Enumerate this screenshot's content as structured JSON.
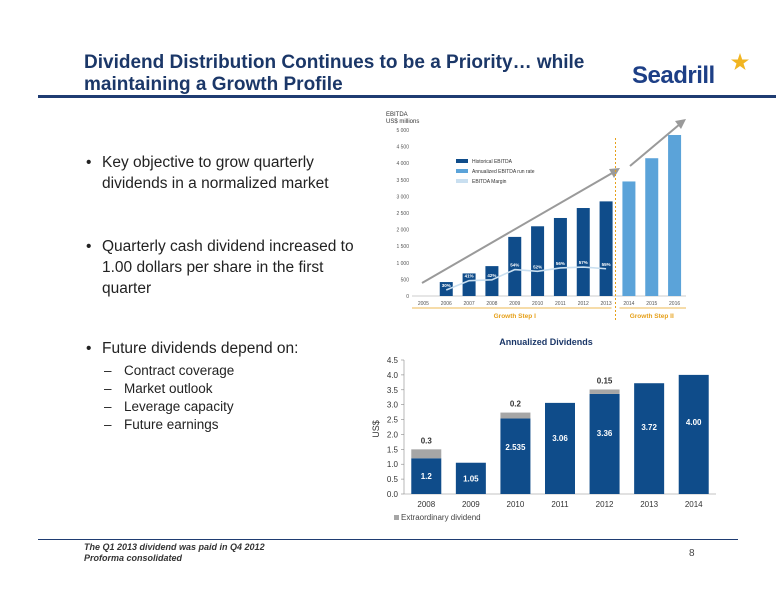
{
  "slide": {
    "title": "Dividend Distribution Continues to be a Priority… while maintaining a Growth Profile",
    "logo_text": "Seadrill",
    "page_number": "8",
    "footnotes": [
      "The Q1 2013 dividend was paid in Q4 2012",
      "Proforma consolidated"
    ]
  },
  "bullets": [
    {
      "text": "Key objective to grow quarterly dividends in a normalized market"
    },
    {
      "text": "Quarterly cash dividend increased to 1.00 dollars per share in the first quarter"
    },
    {
      "text": "Future dividends depend on:"
    }
  ],
  "sub_bullets": [
    "Contract coverage",
    "Market outlook",
    "Leverage capacity",
    "Future earnings"
  ],
  "colors": {
    "navy": "#1f3c72",
    "bar_dark": "#0f4c8a",
    "bar_light": "#5ba3d9",
    "extraordinary": "#a6a6a6",
    "gold": "#e6a01a"
  },
  "chart_data": [
    {
      "type": "bar",
      "ylabel_lines": [
        "EBITDA",
        "US$ millions"
      ],
      "ylim": [
        0,
        5000
      ],
      "yticks": [
        "0",
        "500",
        "1 000",
        "1 500",
        "2 000",
        "2 500",
        "3 000",
        "3 500",
        "4 000",
        "4 500",
        "5 000"
      ],
      "categories": [
        "2005",
        "2006",
        "2007",
        "2008",
        "2009",
        "2010",
        "2011",
        "2012",
        "2013",
        "2014",
        "2015",
        "2016"
      ],
      "series": [
        {
          "name": "Historical EBITDA",
          "values": [
            null,
            420,
            680,
            900,
            1780,
            2100,
            2350,
            2650,
            2850,
            null,
            null,
            null
          ]
        },
        {
          "name": "Annualized EBITDA run rate",
          "values": [
            null,
            null,
            null,
            null,
            null,
            null,
            null,
            null,
            null,
            3450,
            4150,
            4850
          ]
        },
        {
          "name": "EBITDA Margin",
          "values": [
            null,
            30,
            41,
            42,
            54,
            52,
            56,
            57,
            55,
            null,
            null,
            null
          ],
          "labels": [
            "",
            "30%",
            "41%",
            "42%",
            "54%",
            "52%",
            "56%",
            "57%",
            "55%",
            "",
            "",
            ""
          ]
        }
      ],
      "annotations": [
        "Growth Step I",
        "Growth Step II"
      ]
    },
    {
      "type": "bar",
      "title": "Annualized Dividends",
      "ylabel": "US$",
      "ylim": [
        0,
        4.5
      ],
      "yticks": [
        "0.0",
        "0.5",
        "1.0",
        "1.5",
        "2.0",
        "2.5",
        "3.0",
        "3.5",
        "4.0",
        "4.5"
      ],
      "categories": [
        "2008",
        "2009",
        "2010",
        "2011",
        "2012",
        "2013",
        "2014"
      ],
      "series": [
        {
          "name": "",
          "values": [
            1.2,
            1.05,
            2.535,
            3.06,
            3.36,
            3.72,
            4.0
          ],
          "labels": [
            "1.2",
            "1.05",
            "2.535",
            "3.06",
            "3.36",
            "3.72",
            "4.00"
          ]
        },
        {
          "name": "Extraordinary dividend",
          "values": [
            0.3,
            0,
            0.2,
            0,
            0.15,
            0,
            0
          ],
          "labels": [
            "0.3",
            "",
            "0.2",
            "",
            "0.15",
            "",
            ""
          ]
        }
      ]
    }
  ]
}
